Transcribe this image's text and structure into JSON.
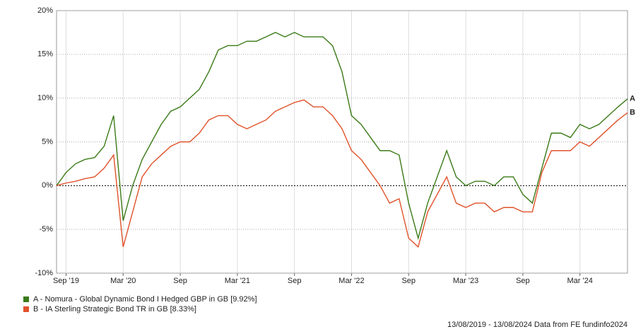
{
  "chart_data": {
    "type": "line",
    "x": [
      "2019-08",
      "2019-09",
      "2019-10",
      "2019-11",
      "2019-12",
      "2020-01",
      "2020-02",
      "2020-03",
      "2020-04",
      "2020-05",
      "2020-06",
      "2020-07",
      "2020-08",
      "2020-09",
      "2020-10",
      "2020-11",
      "2020-12",
      "2021-01",
      "2021-02",
      "2021-03",
      "2021-04",
      "2021-05",
      "2021-06",
      "2021-07",
      "2021-08",
      "2021-09",
      "2021-10",
      "2021-11",
      "2021-12",
      "2022-01",
      "2022-02",
      "2022-03",
      "2022-04",
      "2022-05",
      "2022-06",
      "2022-07",
      "2022-08",
      "2022-09",
      "2022-10",
      "2022-11",
      "2022-12",
      "2023-01",
      "2023-02",
      "2023-03",
      "2023-04",
      "2023-05",
      "2023-06",
      "2023-07",
      "2023-08",
      "2023-09",
      "2023-10",
      "2023-11",
      "2023-12",
      "2024-01",
      "2024-02",
      "2024-03",
      "2024-04",
      "2024-05",
      "2024-06",
      "2024-07",
      "2024-08"
    ],
    "series": [
      {
        "name": "A - Nomura - Global Dynamic Bond I Hedged GBP in GB [9.92%]",
        "tag": "A",
        "color": "#3a7a17",
        "values": [
          0,
          1.5,
          2.5,
          3,
          3.2,
          4.5,
          8,
          -4,
          0,
          3,
          5,
          7,
          8.5,
          9,
          10,
          11,
          13,
          15.5,
          16,
          16,
          16.5,
          16.5,
          17,
          17.5,
          17,
          17.5,
          17,
          17,
          17,
          16,
          13,
          8,
          7,
          5.5,
          4,
          4,
          3.5,
          -2,
          -6,
          -2,
          1,
          4,
          1,
          0,
          0.5,
          0.5,
          0,
          1,
          1,
          -1,
          -2,
          2,
          6,
          6,
          5.5,
          7,
          6.5,
          7,
          8,
          9,
          9.92
        ]
      },
      {
        "name": "B - IA Sterling Strategic Bond TR in GB [8.33%]",
        "tag": "B",
        "color": "#e0522a",
        "values": [
          0,
          0.3,
          0.5,
          0.8,
          1,
          2,
          3.5,
          -7,
          -3,
          1,
          2.5,
          3.5,
          4.5,
          5,
          5,
          6,
          7.5,
          8,
          8,
          7,
          6.5,
          7,
          7.5,
          8.5,
          9,
          9.5,
          9.8,
          9,
          9,
          8,
          6.5,
          4,
          3,
          1.5,
          0,
          -2,
          -1.5,
          -6,
          -7,
          -3,
          -1,
          1,
          -2,
          -2.5,
          -2,
          -2,
          -3,
          -2.5,
          -2.5,
          -3,
          -3,
          1.5,
          4,
          4,
          4,
          5,
          4.5,
          5.5,
          6.5,
          7.5,
          8.33
        ]
      }
    ],
    "xticks": [
      {
        "value": "2019-09",
        "label": "Sep '19"
      },
      {
        "value": "2020-03",
        "label": "Mar '20"
      },
      {
        "value": "2020-09",
        "label": "Sep"
      },
      {
        "value": "2021-03",
        "label": "Mar '21"
      },
      {
        "value": "2021-09",
        "label": "Sep"
      },
      {
        "value": "2022-03",
        "label": "Mar '22"
      },
      {
        "value": "2022-09",
        "label": "Sep"
      },
      {
        "value": "2023-03",
        "label": "Mar '23"
      },
      {
        "value": "2023-09",
        "label": "Sep"
      },
      {
        "value": "2024-03",
        "label": "Mar '24"
      }
    ],
    "ylim": [
      -10,
      20
    ],
    "yticks": [
      {
        "value": -10,
        "label": "-10%"
      },
      {
        "value": -5,
        "label": "-5%"
      },
      {
        "value": 0,
        "label": "0%"
      },
      {
        "value": 5,
        "label": "5%"
      },
      {
        "value": 10,
        "label": "10%"
      },
      {
        "value": 15,
        "label": "15%"
      },
      {
        "value": 20,
        "label": "20%"
      }
    ],
    "grid": true,
    "footer": "13/08/2019 - 13/08/2024 Data from FE fundinfo2024"
  }
}
